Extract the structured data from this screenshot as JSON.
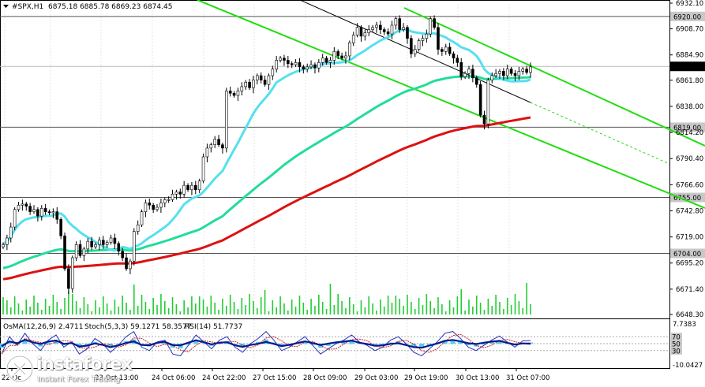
{
  "header": {
    "symbol_label": "#SPX,H1",
    "ohlc_label": "6875.18 6885.78 6869.23 6874.45"
  },
  "chart_data": {
    "type": "candlestick",
    "symbol": "#SPX",
    "timeframe": "H1",
    "ohlc": {
      "open": 6875.18,
      "high": 6885.78,
      "low": 6869.23,
      "close": 6874.45
    },
    "ylim": [
      6648.3,
      6932.1
    ],
    "y_ticks": [
      "6932.10",
      "6908.70",
      "6884.90",
      "6861.80",
      "6838.00",
      "6814.20",
      "6790.40",
      "6766.60",
      "6742.80",
      "6719.00",
      "6695.20",
      "6671.40",
      "6648.30"
    ],
    "x_ticks": [
      "22 Oc",
      "23 Oct 13:00",
      "24 Oct 06:00",
      "24 Oct 22:00",
      "27 Oct 15:00",
      "28 Oct 09:00",
      "29 Oct 03:00",
      "29 Oct 19:00",
      "30 Oct 13:00",
      "31 Oct 07:00"
    ],
    "levels": [
      {
        "value": 6920.0,
        "label": "6920.00"
      },
      {
        "value": 6874.45,
        "label": "6874.45",
        "current": true
      },
      {
        "value": 6819.0,
        "label": "6819.00"
      },
      {
        "value": 6755.0,
        "label": "6755.00"
      },
      {
        "value": 6704.0,
        "label": "6704.00"
      }
    ],
    "moving_averages": {
      "fast_color": "#55e0f0",
      "mid_color": "#22dd99",
      "slow_color": "#dd1111"
    },
    "channel_color": "#22dd11",
    "candles_close": [
      6712,
      6718,
      6728,
      6744,
      6748,
      6749,
      6747,
      6742,
      6744,
      6738,
      6745,
      6742,
      6741,
      6742,
      6735,
      6720,
      6690,
      6672,
      6700,
      6712,
      6702,
      6708,
      6715,
      6710,
      6712,
      6716,
      6712,
      6714,
      6718,
      6713,
      6706,
      6700,
      6690,
      6697,
      6724,
      6730,
      6742,
      6750,
      6748,
      6744,
      6746,
      6750,
      6753,
      6753,
      6758,
      6760,
      6758,
      6766,
      6762,
      6766,
      6762,
      6770,
      6792,
      6800,
      6803,
      6808,
      6803,
      6800,
      6852,
      6850,
      6848,
      6852,
      6856,
      6860,
      6855,
      6862,
      6866,
      6862,
      6858,
      6866,
      6872,
      6880,
      6882,
      6880,
      6877,
      6876,
      6878,
      6874,
      6872,
      6874,
      6876,
      6873,
      6878,
      6882,
      6878,
      6880,
      6888,
      6884,
      6882,
      6884,
      6896,
      6903,
      6910,
      6902,
      6905,
      6908,
      6910,
      6912,
      6908,
      6906,
      6904,
      6912,
      6918,
      6908,
      6910,
      6900,
      6886,
      6890,
      6898,
      6900,
      6904,
      6918,
      6910,
      6890,
      6888,
      6892,
      6886,
      6882,
      6878,
      6865,
      6868,
      6872,
      6864,
      6858,
      6830,
      6822,
      6862,
      6866,
      6868,
      6870,
      6866,
      6872,
      6868,
      6866,
      6870,
      6872,
      6869,
      6874
    ],
    "oscillators": {
      "osma_label": "OsMA(12,26,9) 2.4711",
      "stoch_label": "Stoch(5,3,3) 59.1271 58.3577",
      "rsi_label": "RSI(14) 51.7737",
      "scale": [
        "7.7383",
        "-10.0427"
      ],
      "stoch_levels": [
        "70",
        "50",
        "30"
      ],
      "stoch_values": [
        20,
        70,
        45,
        80,
        50,
        30,
        60,
        75,
        40,
        55,
        20,
        35,
        65,
        50,
        25,
        45,
        70,
        85,
        40,
        30,
        55,
        60,
        20,
        15,
        45,
        75,
        55,
        35,
        60,
        70,
        40,
        25,
        50,
        65,
        85,
        60,
        30,
        40,
        55,
        70,
        45,
        20,
        35,
        50,
        60,
        75,
        55,
        45,
        30,
        40,
        60,
        70,
        50,
        25,
        15,
        35,
        55,
        80,
        85,
        65,
        40,
        30,
        45,
        60,
        72,
        55,
        40,
        58,
        59
      ]
    }
  },
  "watermark": {
    "brand": "instaforex",
    "tagline": "Instant Forex Trading"
  }
}
